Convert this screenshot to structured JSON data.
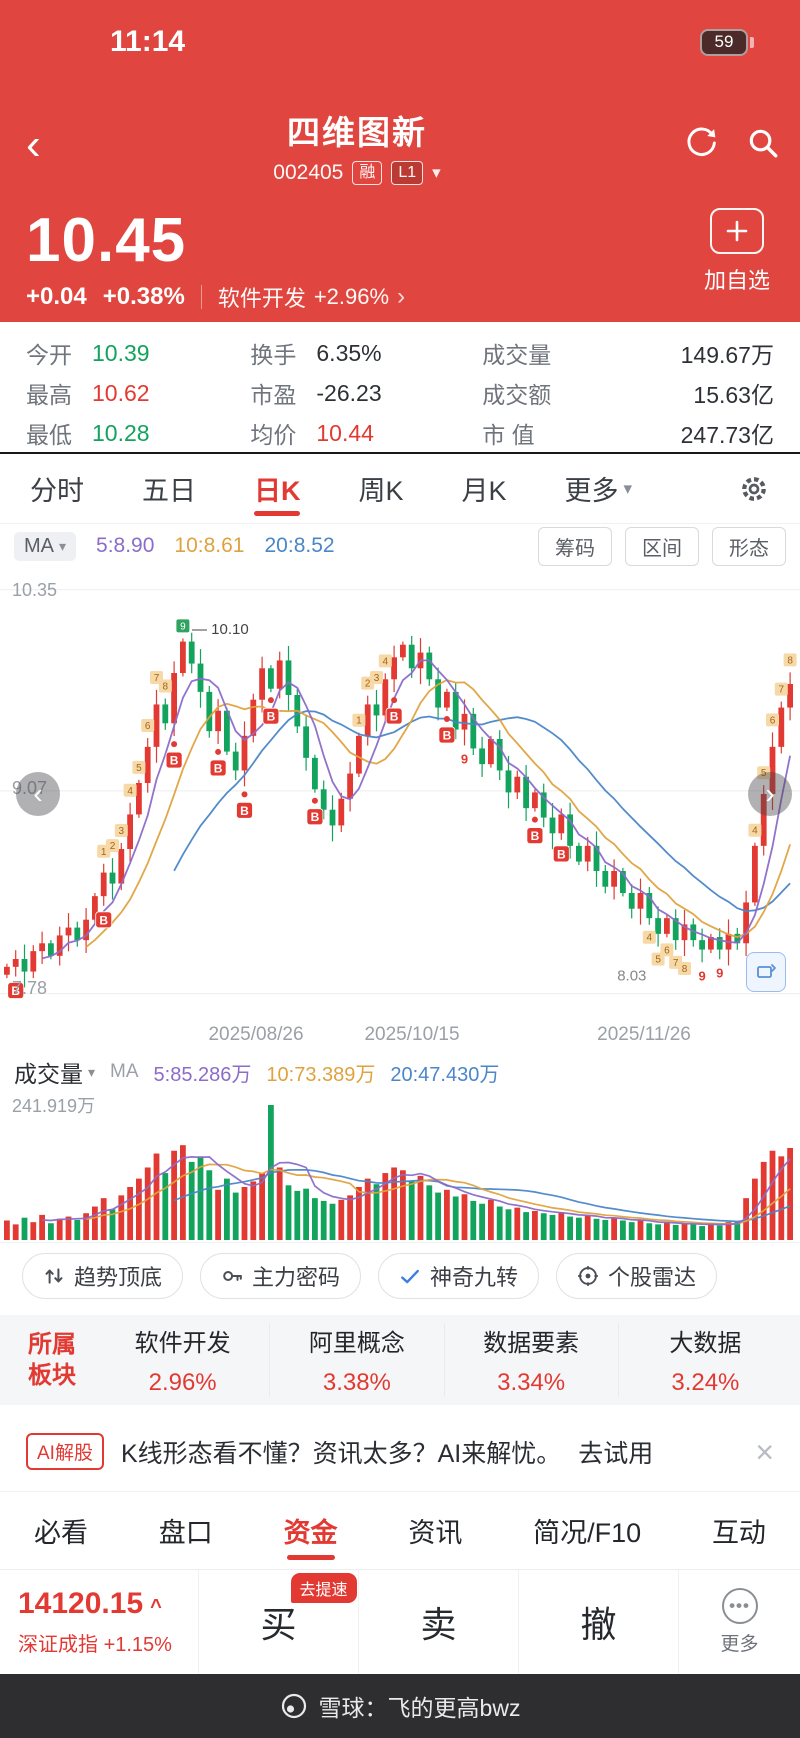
{
  "colors": {
    "header_red": "#e0463f",
    "up_red": "#e23a33",
    "down_green": "#12a35d",
    "ma5": "#8b6cc9",
    "ma10": "#dfa23e",
    "ma20": "#4a86c8"
  },
  "glyphs": {
    "back": "‹",
    "chev_left": "‹",
    "chev_right": "›",
    "dropdown": "▾",
    "link_arrow": "›",
    "close": "×",
    "more_dots": "•••",
    "caret_up": "^",
    "pipe": "|"
  },
  "status_bar": {
    "time": "11:14",
    "battery": "59"
  },
  "header": {
    "title": "四维图新",
    "code": "002405",
    "margin_badge": "融",
    "level_badge": "L1"
  },
  "price": {
    "current": "10.45",
    "change": "+0.04",
    "change_pct": "+0.38%",
    "sector": "软件开发",
    "sector_pct": "+2.96%",
    "add_watchlist": "加自选"
  },
  "stats": {
    "items": [
      {
        "label": "今开",
        "value": "10.39"
      },
      {
        "label": "换手",
        "value": "6.35%"
      },
      {
        "label": "成交量",
        "value": "149.67万"
      },
      {
        "label": "最高",
        "value": "10.62"
      },
      {
        "label": "市盈",
        "value": "-26.23"
      },
      {
        "label": "成交额",
        "value": "15.63亿"
      },
      {
        "label": "最低",
        "value": "10.28"
      },
      {
        "label": "均价",
        "value": "10.44"
      },
      {
        "label": "市 值",
        "value": "247.73亿"
      }
    ]
  },
  "tabs": {
    "items": [
      "分时",
      "五日",
      "日K",
      "周K",
      "月K",
      "更多"
    ],
    "active_index": 2
  },
  "ma_bar": {
    "ma_label": "MA",
    "ma5": "5:8.90",
    "ma10": "10:8.61",
    "ma20": "20:8.52",
    "buttons": [
      "筹码",
      "区间",
      "形态"
    ]
  },
  "chart": {
    "y_labels": [
      "10.35",
      "9.07",
      "7.78"
    ],
    "grid_prices": [
      10.35,
      9.07,
      7.78
    ],
    "x_labels": [
      "2025/08/26",
      "2025/10/15",
      "2025/11/26"
    ],
    "annotation_high": "— 10.10",
    "annotation_high_price": 10.1,
    "annotation_low": "8.03",
    "annotation_low_price": 8.03,
    "price_top": 10.45,
    "price_bottom": 7.65,
    "first_open": 7.9,
    "closes": [
      7.95,
      8.0,
      7.92,
      8.05,
      8.1,
      8.02,
      8.15,
      8.2,
      8.12,
      8.25,
      8.4,
      8.55,
      8.48,
      8.7,
      8.92,
      9.12,
      9.35,
      9.62,
      9.5,
      9.82,
      10.02,
      9.88,
      9.7,
      9.45,
      9.58,
      9.32,
      9.2,
      9.42,
      9.65,
      9.85,
      9.72,
      9.9,
      9.68,
      9.48,
      9.28,
      9.08,
      8.95,
      8.85,
      9.02,
      9.18,
      9.42,
      9.62,
      9.55,
      9.78,
      9.92,
      10.0,
      9.85,
      9.95,
      9.78,
      9.6,
      9.7,
      9.46,
      9.56,
      9.34,
      9.24,
      9.4,
      9.2,
      9.06,
      9.16,
      8.96,
      9.06,
      8.9,
      8.8,
      8.92,
      8.72,
      8.62,
      8.72,
      8.56,
      8.46,
      8.56,
      8.42,
      8.32,
      8.42,
      8.26,
      8.16,
      8.26,
      8.12,
      8.22,
      8.12,
      8.06,
      8.14,
      8.06,
      8.16,
      8.1,
      8.36,
      8.72,
      9.05,
      9.35,
      9.6,
      9.75
    ],
    "volumes": [
      35,
      28,
      40,
      32,
      45,
      30,
      38,
      42,
      36,
      48,
      60,
      75,
      55,
      80,
      95,
      110,
      130,
      155,
      120,
      160,
      170,
      140,
      150,
      125,
      90,
      110,
      85,
      95,
      105,
      120,
      242,
      130,
      98,
      88,
      92,
      75,
      70,
      65,
      72,
      80,
      95,
      110,
      100,
      120,
      130,
      125,
      105,
      115,
      98,
      85,
      90,
      78,
      82,
      70,
      65,
      72,
      60,
      55,
      58,
      50,
      52,
      48,
      45,
      50,
      42,
      40,
      44,
      38,
      36,
      40,
      35,
      32,
      36,
      30,
      28,
      32,
      27,
      30,
      28,
      25,
      30,
      26,
      32,
      32,
      75,
      110,
      140,
      160,
      150,
      165
    ],
    "vol_max": 242,
    "b_markers": [
      {
        "i": 1,
        "dot": false
      },
      {
        "i": 11,
        "dot": false
      },
      {
        "i": 19,
        "dot": true
      },
      {
        "i": 24,
        "dot": true
      },
      {
        "i": 27,
        "dot": true
      },
      {
        "i": 30,
        "dot": true
      },
      {
        "i": 35,
        "dot": true
      },
      {
        "i": 44,
        "dot": true
      },
      {
        "i": 50,
        "dot": true
      },
      {
        "i": 60,
        "dot": true
      },
      {
        "i": 63,
        "dot": false
      }
    ],
    "seq_markers": [
      {
        "i": 11,
        "t": "1"
      },
      {
        "i": 12,
        "t": "2"
      },
      {
        "i": 13,
        "t": "3"
      },
      {
        "i": 14,
        "t": "4"
      },
      {
        "i": 15,
        "t": "5"
      },
      {
        "i": 16,
        "t": "6"
      },
      {
        "i": 17,
        "t": "7"
      },
      {
        "i": 18,
        "t": "8"
      },
      {
        "i": 20,
        "t": "9",
        "s": "green"
      },
      {
        "i": 40,
        "t": "1"
      },
      {
        "i": 41,
        "t": "2"
      },
      {
        "i": 42,
        "t": "3"
      },
      {
        "i": 43,
        "t": "4"
      },
      {
        "i": 52,
        "t": "9",
        "s": "red",
        "below": true
      },
      {
        "i": 73,
        "t": "4",
        "below": true
      },
      {
        "i": 74,
        "t": "5",
        "below": true
      },
      {
        "i": 75,
        "t": "6",
        "below": true
      },
      {
        "i": 76,
        "t": "7",
        "below": true
      },
      {
        "i": 77,
        "t": "8",
        "below": true
      },
      {
        "i": 79,
        "t": "9",
        "s": "red",
        "below": true
      },
      {
        "i": 81,
        "t": "9",
        "s": "red",
        "below": true
      },
      {
        "i": 85,
        "t": "4"
      },
      {
        "i": 86,
        "t": "5"
      },
      {
        "i": 87,
        "t": "6"
      },
      {
        "i": 88,
        "t": "7"
      },
      {
        "i": 89,
        "t": "8"
      }
    ]
  },
  "volume_bar": {
    "label": "成交量",
    "ma_label": "MA",
    "ma5": "5:85.286万",
    "ma10": "10:73.389万",
    "ma20": "20:47.430万",
    "max_label": "241.919万"
  },
  "features": [
    "趋势顶底",
    "主力密码",
    "神奇九转",
    "个股雷达"
  ],
  "sectors": {
    "title_line1": "所属",
    "title_line2": "板块",
    "items": [
      {
        "name": "软件开发",
        "pct": "2.96%"
      },
      {
        "name": "阿里概念",
        "pct": "3.38%"
      },
      {
        "name": "数据要素",
        "pct": "3.34%"
      },
      {
        "name": "大数据",
        "pct": "3.24%"
      }
    ]
  },
  "ai_banner": {
    "badge": "AI解股",
    "text": "K线形态看不懂？资讯太多？AI来解忧。",
    "link": "去试用",
    "close": "×"
  },
  "bottom_nav": {
    "items": [
      "必看",
      "盘口",
      "资金",
      "资讯",
      "简况/F10",
      "互动"
    ],
    "active_index": 2
  },
  "action_bar": {
    "index_value": "14120.15",
    "index_name": "深证成指",
    "index_pct": "+1.15%",
    "speed_badge": "去提速",
    "buy": "买",
    "sell": "卖",
    "cancel": "撤",
    "more": "更多"
  },
  "watermark": "雪球：飞的更高bwz"
}
